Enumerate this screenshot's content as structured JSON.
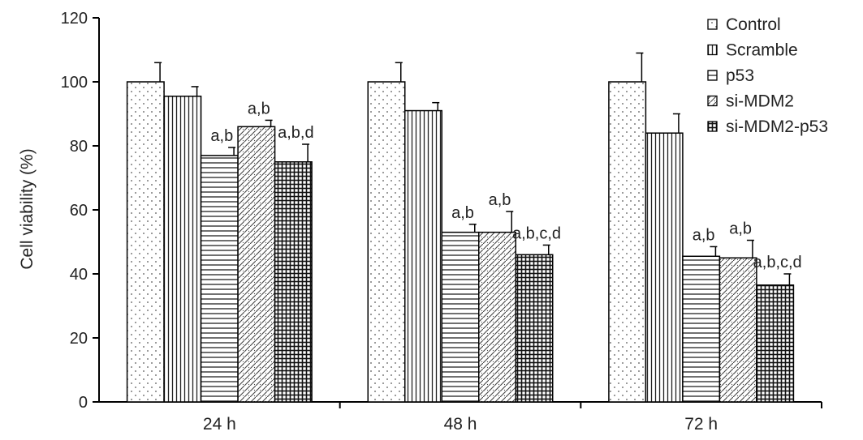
{
  "chart_data": {
    "type": "bar",
    "title": "",
    "xlabel": "",
    "ylabel": "Cell viability (%)",
    "ylim": [
      0,
      120
    ],
    "yticks": [
      0,
      20,
      40,
      60,
      80,
      100,
      120
    ],
    "categories": [
      "24 h",
      "48 h",
      "72 h"
    ],
    "legend_position": "top-right",
    "grid": false,
    "series": [
      {
        "name": "Control",
        "pattern": "dots",
        "values": [
          100,
          100,
          100
        ],
        "errors": [
          6,
          6,
          9
        ],
        "annotations": [
          "",
          "",
          ""
        ]
      },
      {
        "name": "Scramble",
        "pattern": "vlines",
        "values": [
          95.5,
          91,
          84
        ],
        "errors": [
          3,
          2.5,
          6
        ],
        "annotations": [
          "",
          "",
          ""
        ]
      },
      {
        "name": "p53",
        "pattern": "hlines",
        "values": [
          77,
          53,
          45.5
        ],
        "errors": [
          2.5,
          2.5,
          3
        ],
        "annotations": [
          "a,b",
          "a,b",
          "a,b"
        ]
      },
      {
        "name": "si-MDM2",
        "pattern": "hatch",
        "values": [
          86,
          53,
          45
        ],
        "errors": [
          2,
          6.5,
          5.5
        ],
        "annotations": [
          "a,b",
          "a,b",
          "a,b"
        ]
      },
      {
        "name": "si-MDM2-p53",
        "pattern": "grid",
        "values": [
          75,
          46,
          36.5
        ],
        "errors": [
          5.5,
          3,
          3.5
        ],
        "annotations": [
          "a,b,d",
          "a,b,c,d",
          "a,b,c,d"
        ]
      }
    ]
  }
}
